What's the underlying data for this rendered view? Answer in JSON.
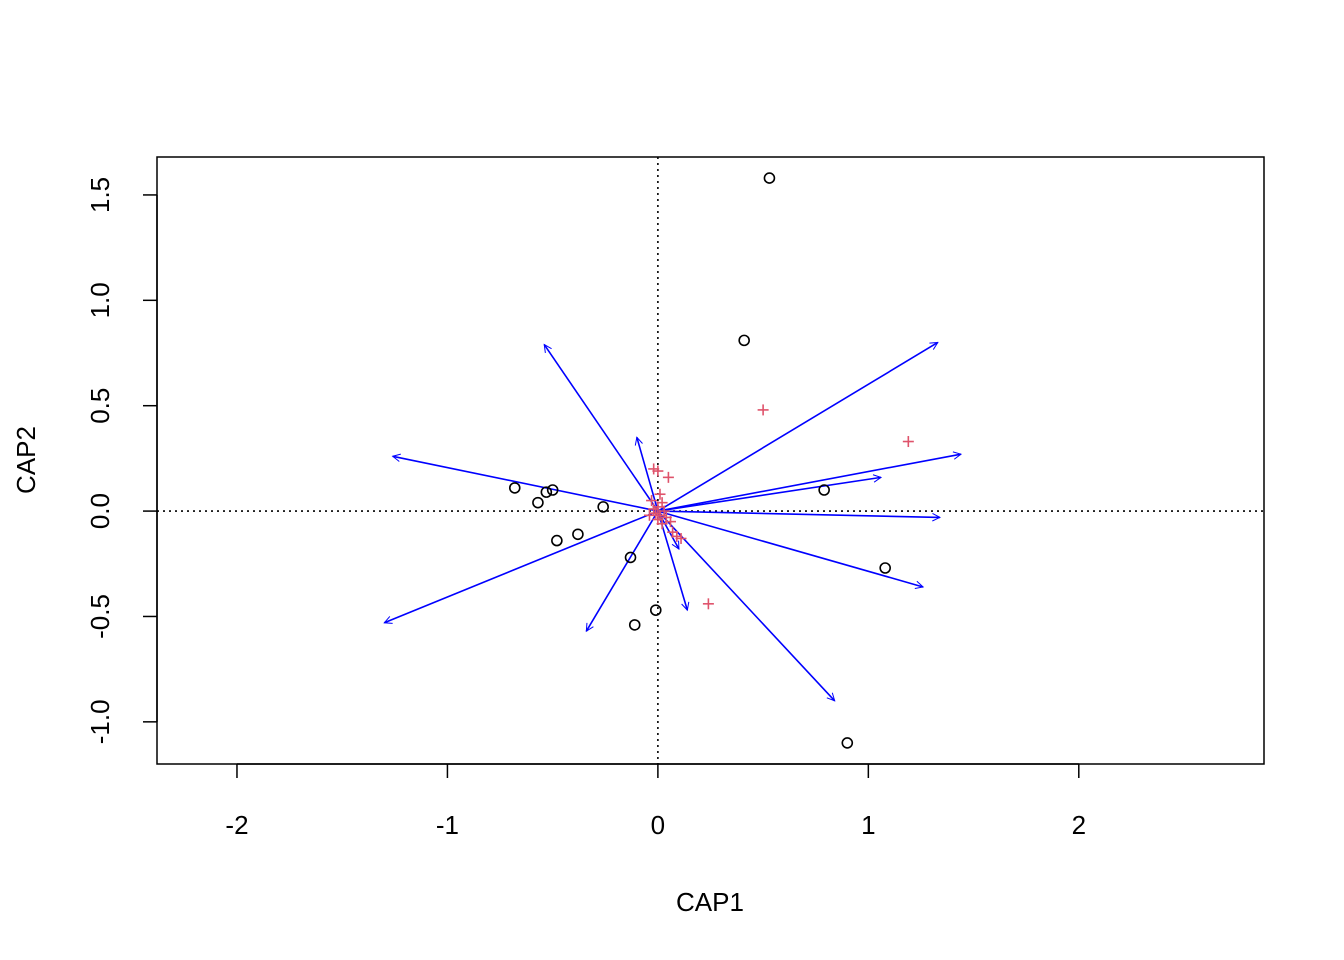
{
  "chart_data": {
    "type": "scatter",
    "title": "",
    "xlabel": "CAP1",
    "ylabel": "CAP2",
    "xlim": [
      -2.38,
      2.88
    ],
    "ylim": [
      -1.2,
      1.68
    ],
    "x_ticks": [
      -2,
      -1,
      0,
      1,
      2
    ],
    "x_tick_labels": [
      "-2",
      "-1",
      "0",
      "1",
      "2"
    ],
    "y_ticks": [
      -1.0,
      -0.5,
      0.0,
      0.5,
      1.0,
      1.5
    ],
    "y_tick_labels": [
      "-1.0",
      "-0.5",
      "0.0",
      "0.5",
      "1.0",
      "1.5"
    ],
    "reference_lines": {
      "x": 0,
      "y": 0,
      "style": "dotted"
    },
    "grid": false,
    "legend": "none",
    "colors": {
      "sites": "#000000",
      "species": "#df536b",
      "arrows": "#0000ff"
    },
    "sites": [
      {
        "x": 0.53,
        "y": 1.58
      },
      {
        "x": 0.41,
        "y": 0.81
      },
      {
        "x": -0.68,
        "y": 0.11
      },
      {
        "x": -0.53,
        "y": 0.09
      },
      {
        "x": -0.5,
        "y": 0.1
      },
      {
        "x": -0.57,
        "y": 0.04
      },
      {
        "x": -0.26,
        "y": 0.02
      },
      {
        "x": -0.48,
        "y": -0.14
      },
      {
        "x": -0.38,
        "y": -0.11
      },
      {
        "x": -0.13,
        "y": -0.22
      },
      {
        "x": -0.01,
        "y": -0.47
      },
      {
        "x": -0.11,
        "y": -0.54
      },
      {
        "x": 0.79,
        "y": 0.1
      },
      {
        "x": 1.08,
        "y": -0.27
      },
      {
        "x": 0.9,
        "y": -1.1
      }
    ],
    "species": [
      {
        "x": 0.5,
        "y": 0.48
      },
      {
        "x": 1.19,
        "y": 0.33
      },
      {
        "x": 0.24,
        "y": -0.44
      },
      {
        "x": -0.02,
        "y": 0.2
      },
      {
        "x": 0.0,
        "y": 0.19
      },
      {
        "x": 0.05,
        "y": 0.16
      },
      {
        "x": 0.01,
        "y": 0.08
      },
      {
        "x": -0.03,
        "y": 0.05
      },
      {
        "x": 0.02,
        "y": 0.04
      },
      {
        "x": 0.0,
        "y": 0.02
      },
      {
        "x": -0.02,
        "y": 0.01
      },
      {
        "x": 0.03,
        "y": 0.0
      },
      {
        "x": -0.01,
        "y": -0.01
      },
      {
        "x": 0.01,
        "y": -0.02
      },
      {
        "x": 0.04,
        "y": -0.03
      },
      {
        "x": 0.06,
        "y": -0.05
      },
      {
        "x": 0.02,
        "y": -0.06
      },
      {
        "x": 0.07,
        "y": -0.1
      },
      {
        "x": 0.09,
        "y": -0.12
      },
      {
        "x": 0.11,
        "y": -0.13
      },
      {
        "x": -0.04,
        "y": -0.02
      },
      {
        "x": 0.0,
        "y": -0.04
      }
    ],
    "arrows": [
      {
        "x": 1.33,
        "y": 0.8
      },
      {
        "x": 1.44,
        "y": 0.27
      },
      {
        "x": 1.06,
        "y": 0.16
      },
      {
        "x": 1.34,
        "y": -0.03
      },
      {
        "x": 1.26,
        "y": -0.36
      },
      {
        "x": 0.84,
        "y": -0.9
      },
      {
        "x": 0.14,
        "y": -0.47
      },
      {
        "x": 0.1,
        "y": -0.18
      },
      {
        "x": -0.34,
        "y": -0.57
      },
      {
        "x": -1.3,
        "y": -0.53
      },
      {
        "x": -1.26,
        "y": 0.26
      },
      {
        "x": -0.54,
        "y": 0.79
      },
      {
        "x": -0.1,
        "y": 0.35
      }
    ]
  }
}
